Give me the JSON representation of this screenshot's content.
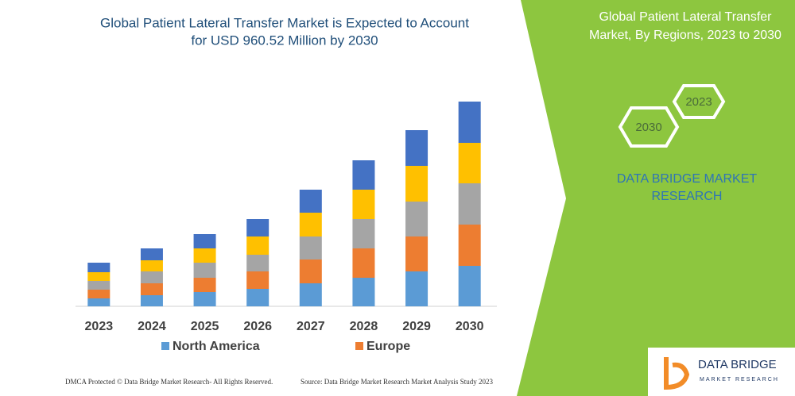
{
  "chart_data": {
    "type": "stacked-bar",
    "title": [
      "Global Patient Lateral Transfer Market is Expected to Account",
      "for USD 960.52 Million by 2030"
    ],
    "categories": [
      "2023",
      "2024",
      "2025",
      "2026",
      "2027",
      "2028",
      "2029",
      "2030"
    ],
    "series": [
      {
        "name": "North America",
        "color": "#5b9bd5",
        "values": [
          10,
          14,
          18,
          22,
          29,
          36,
          44,
          51
        ]
      },
      {
        "name": "Europe",
        "color": "#ed7d31",
        "values": [
          11,
          15,
          18,
          22,
          30,
          37,
          44,
          52
        ]
      },
      {
        "color": "#a5a5a5",
        "values": [
          11,
          15,
          19,
          21,
          29,
          37,
          44,
          52
        ]
      },
      {
        "color": "#ffc000",
        "values": [
          11,
          14,
          18,
          23,
          30,
          37,
          45,
          51
        ]
      },
      {
        "color": "#4472c4",
        "values": [
          12,
          15,
          18,
          22,
          29,
          37,
          45,
          52
        ]
      }
    ],
    "ylim": [
      0,
      260
    ]
  },
  "panel": {
    "title": [
      "Global Patient Lateral Transfer",
      "Market, By Regions, 2023 to 2030"
    ],
    "hexagons": [
      "2023",
      "2030"
    ],
    "brand": [
      "DATA BRIDGE MARKET",
      "RESEARCH"
    ]
  },
  "footer": {
    "left": "DMCA Protected © Data Bridge Market Research- All Rights Reserved.",
    "right": "Source: Data Bridge Market Research Market Analysis Study 2023"
  },
  "logo": {
    "name": "DATA BRIDGE",
    "tagline": "MARKET RESEARCH"
  }
}
